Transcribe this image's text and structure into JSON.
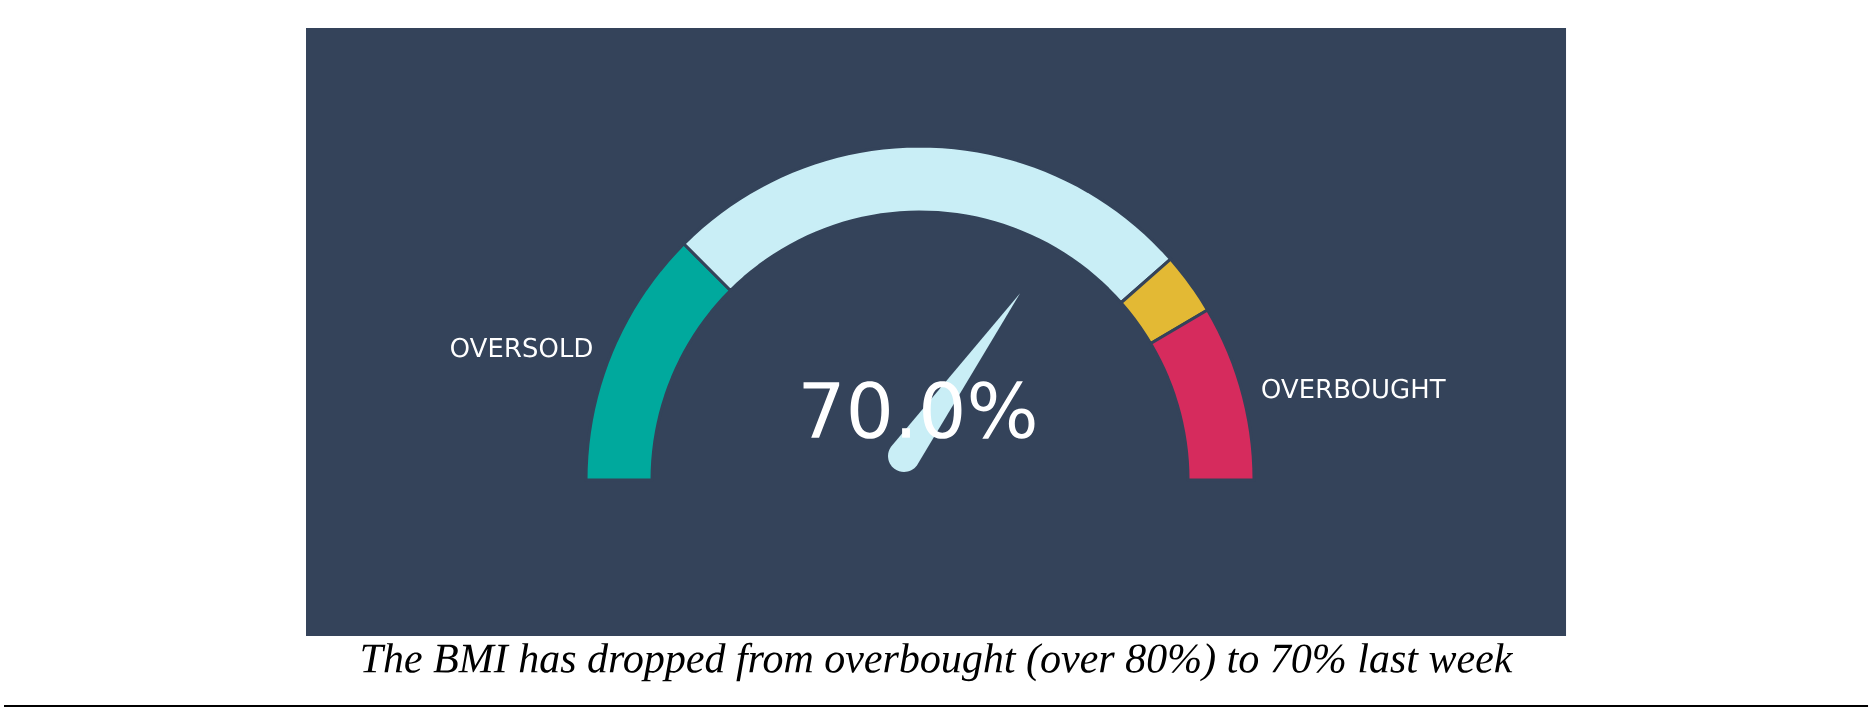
{
  "chart_data": {
    "type": "donut",
    "categories": [
      "OVERSOLD",
      null,
      null,
      "OVERBOUGHT"
    ],
    "values": [
      25,
      52,
      6,
      17
    ],
    "colors": [
      "#00a99d",
      "#c9eef6",
      "#e3b934",
      "#d62b5d"
    ],
    "annotations": [
      "70.0%",
      "The BMI has dropped from overbought (over 80%) to 70% last week"
    ]
  }
}
